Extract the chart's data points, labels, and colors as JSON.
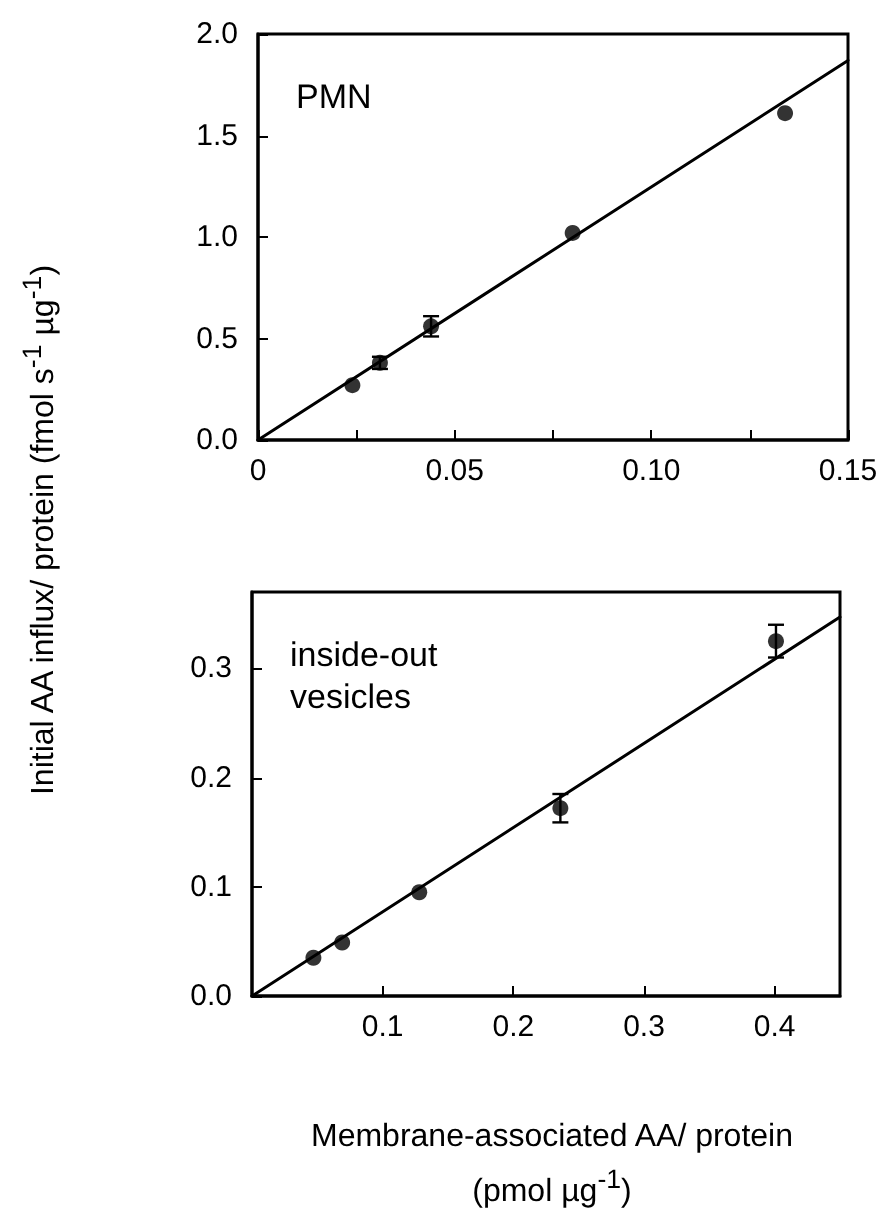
{
  "chart_data": [
    {
      "type": "scatter",
      "title": "PMN",
      "ylabel": "Initial AA influx/ protein (fmol s$^{-1}$ µg$^{-1}$)",
      "xlim": [
        0,
        0.15
      ],
      "xticks": [
        0,
        {
          "value": 0.025,
          "label": null
        },
        0.05,
        {
          "value": 0.075,
          "label": null
        },
        {
          "value": 0.1,
          "label": "0.10"
        },
        {
          "value": 0.125,
          "label": null
        },
        0.15
      ],
      "ylim": [
        0,
        2
      ],
      "yticks": [
        {
          "value": 0,
          "label": "0.0"
        },
        0.5,
        {
          "value": 1,
          "label": "1.0"
        },
        1.5,
        {
          "value": 2,
          "label": "2.0"
        }
      ],
      "series": [
        {
          "marker": "circle",
          "color": "#000000",
          "x": [
            0.024,
            0.031,
            0.044,
            0.08,
            0.134
          ],
          "values": [
            0.27,
            0.38,
            0.56,
            1.02,
            1.61
          ],
          "errors": [
            null,
            0.03,
            0.05,
            null,
            null
          ]
        },
        {
          "type": "line",
          "marker": "none",
          "color": "#000000",
          "x": [
            0,
            0.15
          ],
          "values": [
            0,
            1.87
          ]
        }
      ]
    },
    {
      "type": "scatter",
      "title": "inside-out\nvesicles",
      "xlabel": "Membrane-associated AA/ protein\n(pmol µg$^{-1}$)",
      "xlim": [
        0,
        0.45
      ],
      "xticks": [
        0.1,
        0.2,
        0.3,
        0.4
      ],
      "ylim": [
        0,
        0.37
      ],
      "yticks": [
        {
          "value": 0,
          "label": "0.0"
        },
        0.1,
        0.2,
        0.3
      ],
      "series": [
        {
          "marker": "circle",
          "color": "#000000",
          "x": [
            0.047,
            0.069,
            0.128,
            0.236,
            0.401
          ],
          "values": [
            0.035,
            0.049,
            0.095,
            0.172,
            0.325
          ],
          "errors": [
            null,
            null,
            null,
            0.013,
            0.015
          ]
        },
        {
          "type": "line",
          "marker": "none",
          "color": "#000000",
          "x": [
            0,
            0.45
          ],
          "values": [
            0,
            0.347
          ]
        }
      ]
    }
  ]
}
